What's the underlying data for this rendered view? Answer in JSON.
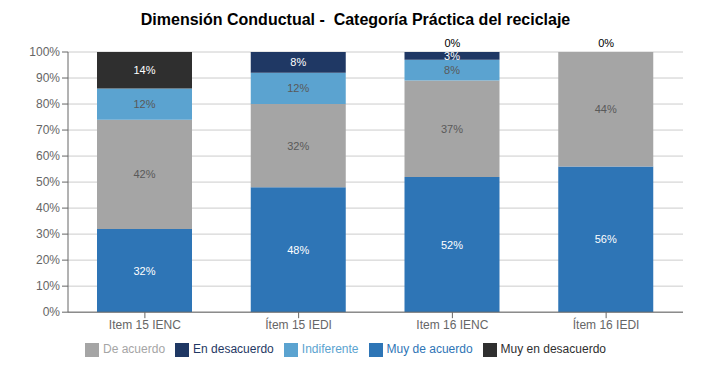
{
  "chart_data": {
    "type": "bar",
    "title": "Dimensión Conductual -  Categoría Práctica del reciclaje",
    "stacked": true,
    "data_labels": true,
    "grid": true,
    "legend": "bottom",
    "categories": [
      "Item 15 IENC",
      "Ítem 15 IEDI",
      "Item 16 IENC",
      "Ítem 16 IEDI"
    ],
    "series": [
      {
        "name": "Muy de acuerdo",
        "color": "#2E75B6",
        "values": [
          32,
          48,
          52,
          56
        ],
        "value_labels": [
          "32%",
          "48%",
          "52%",
          "56%"
        ]
      },
      {
        "name": "De acuerdo",
        "color": "#A5A5A5",
        "values": [
          42,
          32,
          37,
          44
        ],
        "value_labels": [
          "42%",
          "32%",
          "37%",
          "44%"
        ]
      },
      {
        "name": "Indiferente",
        "color": "#5BA3D0",
        "values": [
          12,
          12,
          8,
          0
        ],
        "value_labels": [
          "12%",
          "12%",
          "8%",
          null
        ]
      },
      {
        "name": "En desacuerdo",
        "color": "#1F3864",
        "values": [
          0,
          8,
          3,
          0
        ],
        "value_labels": [
          null,
          "8%",
          "3%",
          null
        ]
      },
      {
        "name": "Muy en desacuerdo",
        "color": "#2F2F2F",
        "values": [
          14,
          0,
          0,
          0
        ],
        "value_labels": [
          "14%",
          null,
          null,
          null
        ]
      }
    ],
    "annotations": [
      {
        "text": "0%",
        "category": "Item 16 IENC"
      },
      {
        "text": "0%",
        "category": "Ítem 16 IEDI"
      }
    ],
    "ylim": [
      0,
      100
    ],
    "yticks": [
      {
        "value": 0,
        "label": "0%"
      },
      {
        "value": 10,
        "label": "10%"
      },
      {
        "value": 20,
        "label": "20%"
      },
      {
        "value": 30,
        "label": "30%"
      },
      {
        "value": 40,
        "label": "40%"
      },
      {
        "value": 50,
        "label": "50%"
      },
      {
        "value": 60,
        "label": "60%"
      },
      {
        "value": 70,
        "label": "70%"
      },
      {
        "value": 80,
        "label": "80%"
      },
      {
        "value": 90,
        "label": "90%"
      },
      {
        "value": 100,
        "label": "100%"
      }
    ]
  }
}
